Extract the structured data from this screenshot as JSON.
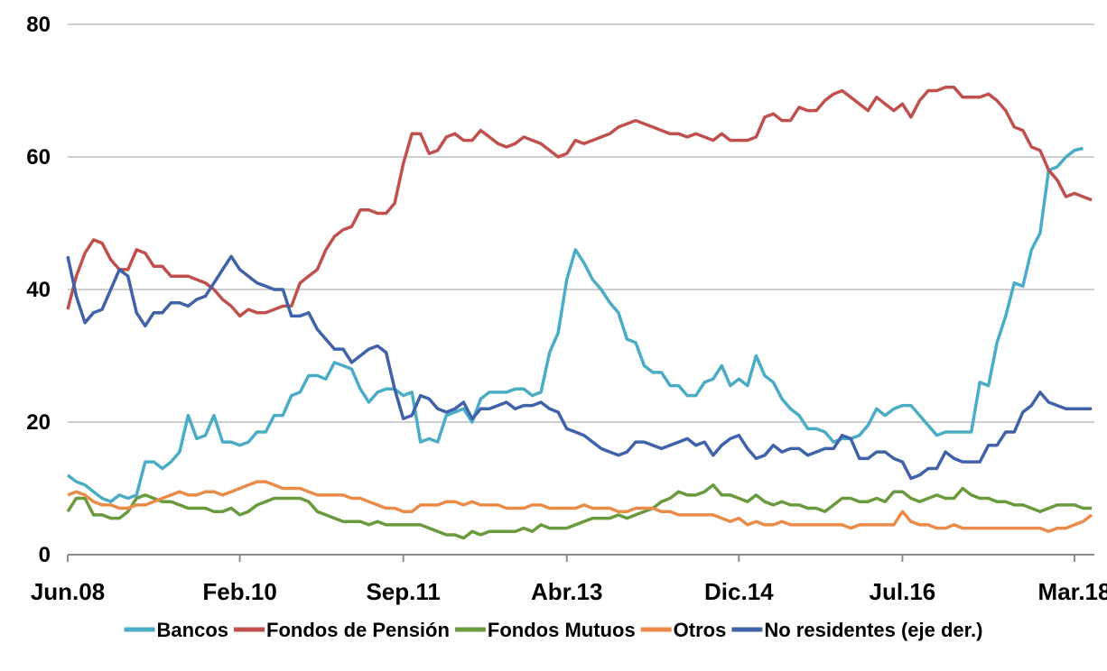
{
  "chart_data": {
    "type": "line",
    "categories": [
      "Jun.08",
      null,
      null,
      null,
      null,
      null,
      null,
      null,
      null,
      null,
      null,
      null,
      null,
      null,
      null,
      null,
      null,
      null,
      null,
      null,
      "Feb.10",
      null,
      null,
      null,
      null,
      null,
      null,
      null,
      null,
      null,
      null,
      null,
      null,
      null,
      null,
      null,
      null,
      null,
      null,
      "Sep.11",
      null,
      null,
      null,
      null,
      null,
      null,
      null,
      null,
      null,
      null,
      null,
      null,
      null,
      null,
      null,
      null,
      null,
      null,
      "Abr.13",
      null,
      null,
      null,
      null,
      null,
      null,
      null,
      null,
      null,
      null,
      null,
      null,
      null,
      null,
      null,
      null,
      null,
      null,
      null,
      "Dic.14",
      null,
      null,
      null,
      null,
      null,
      null,
      null,
      null,
      null,
      null,
      null,
      null,
      null,
      null,
      null,
      null,
      null,
      null,
      "Jul.16",
      null,
      null,
      null,
      null,
      null,
      null,
      null,
      null,
      null,
      null,
      null,
      null,
      null,
      null,
      null,
      null,
      null,
      null,
      null,
      "Mar.18",
      null,
      null
    ],
    "series": [
      {
        "name": "Bancos",
        "color": "#4bacc6",
        "values": [
          12,
          11,
          10.5,
          9.5,
          8.5,
          8,
          9,
          8.5,
          9,
          14,
          14,
          13,
          14,
          15.5,
          21,
          17.5,
          18,
          21,
          17,
          17,
          16.5,
          17,
          18.5,
          18.5,
          21,
          21,
          24,
          24.5,
          27,
          27,
          26.5,
          29,
          28.5,
          28,
          25,
          23,
          24.5,
          25,
          25,
          24,
          24.5,
          17,
          17.5,
          17,
          21,
          21.5,
          22,
          20,
          23.5,
          24.5,
          24.5,
          24.5,
          25,
          25,
          24,
          24.5,
          30.5,
          33.5,
          41.5,
          46,
          44,
          41.5,
          40,
          38,
          36.5,
          32.5,
          32,
          28.5,
          27.5,
          27.5,
          25.5,
          25.5,
          24,
          24,
          26,
          26.5,
          28.5,
          25.5,
          26.5,
          25.5,
          30,
          27,
          26,
          23.5,
          22,
          21,
          19,
          19,
          18.5,
          17,
          17.5,
          17.5,
          18,
          19.5,
          22,
          21,
          22,
          22.5,
          22.5,
          21,
          19.5,
          18,
          18.5,
          18.5,
          18.5,
          18.5,
          26,
          25.5,
          32,
          36,
          41,
          40.5,
          46,
          48.5,
          58,
          58.5,
          60,
          61,
          61.3,
          null
        ]
      },
      {
        "name": "Fondos de Pensión",
        "color": "#c0504d",
        "values": [
          37,
          42,
          45.5,
          47.5,
          47,
          44.5,
          43,
          43,
          46,
          45.5,
          43.5,
          43.5,
          42,
          42,
          42,
          41.5,
          41,
          40,
          38.5,
          37.5,
          36,
          37,
          36.5,
          36.5,
          37,
          37.5,
          37.5,
          41,
          42,
          43,
          46,
          48,
          49,
          49.5,
          52,
          52,
          51.5,
          51.5,
          53,
          59,
          63.5,
          63.5,
          60.5,
          61,
          63,
          63.5,
          62.5,
          62.5,
          64,
          63,
          62,
          61.5,
          62,
          63,
          62.5,
          62,
          61,
          60,
          60.5,
          62.5,
          62,
          62.5,
          63,
          63.5,
          64.5,
          65,
          65.5,
          65,
          64.5,
          64,
          63.5,
          63.5,
          63,
          63.5,
          63,
          62.5,
          63.5,
          62.5,
          62.5,
          62.5,
          63,
          66,
          66.5,
          65.5,
          65.5,
          67.5,
          67,
          67,
          68.5,
          69.5,
          70,
          69,
          68,
          67,
          69,
          68,
          67,
          68,
          66,
          68.5,
          70,
          70,
          70.5,
          70.5,
          69,
          69,
          69,
          69.5,
          68.5,
          67,
          64.5,
          64,
          61.5,
          61,
          58,
          56.5,
          54,
          54.5,
          54,
          53.5
        ]
      },
      {
        "name": "Fondos Mutuos",
        "color": "#6a9a3e",
        "values": [
          6.5,
          8.5,
          8.5,
          6,
          6,
          5.5,
          5.5,
          6.5,
          8.5,
          9,
          8.5,
          8,
          8,
          7.5,
          7,
          7,
          7,
          6.5,
          6.5,
          7,
          6,
          6.5,
          7.5,
          8,
          8.5,
          8.5,
          8.5,
          8.5,
          8,
          6.5,
          6,
          5.5,
          5,
          5,
          5,
          4.5,
          5,
          4.5,
          4.5,
          4.5,
          4.5,
          4.5,
          4,
          3.5,
          3,
          3,
          2.5,
          3.5,
          3,
          3.5,
          3.5,
          3.5,
          3.5,
          4,
          3.5,
          4.5,
          4,
          4,
          4,
          4.5,
          5,
          5.5,
          5.5,
          5.5,
          6,
          5.5,
          6,
          6.5,
          7,
          8,
          8.5,
          9.5,
          9,
          9,
          9.5,
          10.5,
          9,
          9,
          8.5,
          8,
          9,
          8,
          7.5,
          8,
          7.5,
          7.5,
          7,
          7,
          6.5,
          7.5,
          8.5,
          8.5,
          8,
          8,
          8.5,
          8,
          9.5,
          9.5,
          8.5,
          8,
          8.5,
          9,
          8.5,
          8.5,
          10,
          9,
          8.5,
          8.5,
          8,
          8,
          7.5,
          7.5,
          7,
          6.5,
          7,
          7.5,
          7.5,
          7.5,
          7,
          7
        ]
      },
      {
        "name": "Otros",
        "color": "#e98c4a",
        "values": [
          9,
          9.5,
          9,
          8,
          7.5,
          7.5,
          7,
          7,
          7.5,
          7.5,
          8,
          8.5,
          9,
          9.5,
          9,
          9,
          9.5,
          9.5,
          9,
          9.5,
          10,
          10.5,
          11,
          11,
          10.5,
          10,
          10,
          10,
          9.5,
          9,
          9,
          9,
          9,
          8.5,
          8.5,
          8,
          7.5,
          7,
          7,
          6.5,
          6.5,
          7.5,
          7.5,
          7.5,
          8,
          8,
          7.5,
          8,
          7.5,
          7.5,
          7.5,
          7,
          7,
          7,
          7.5,
          7.5,
          7,
          7,
          7,
          7,
          7.5,
          7,
          7,
          7,
          6.5,
          6.5,
          7,
          7,
          7,
          6.5,
          6.5,
          6,
          6,
          6,
          6,
          6,
          5.5,
          5,
          5.5,
          4.5,
          5,
          4.5,
          4.5,
          5,
          4.5,
          4.5,
          4.5,
          4.5,
          4.5,
          4.5,
          4.5,
          4,
          4.5,
          4.5,
          4.5,
          4.5,
          4.5,
          6.5,
          5,
          4.5,
          4.5,
          4,
          4,
          4.5,
          4,
          4,
          4,
          4,
          4,
          4,
          4,
          4,
          4,
          4,
          3.5,
          4,
          4,
          4.5,
          5,
          6
        ]
      },
      {
        "name": "No residentes (eje der.)",
        "color": "#3f62a8",
        "values": [
          45,
          39,
          35,
          36.5,
          37,
          40,
          43,
          42,
          36.5,
          34.5,
          36.5,
          36.5,
          38,
          38,
          37.5,
          38.5,
          39,
          41,
          43,
          45,
          43,
          42,
          41,
          40.5,
          40,
          40,
          36,
          36,
          36.5,
          34,
          32.5,
          31,
          31,
          29,
          30,
          31,
          31.5,
          30.5,
          25,
          20.5,
          21,
          24,
          23.5,
          22,
          21.5,
          22,
          23,
          20.5,
          22,
          22,
          22.5,
          23,
          22,
          22.5,
          22.5,
          23,
          22,
          21.5,
          19,
          18.5,
          18,
          17,
          16,
          15.5,
          15,
          15.5,
          17,
          17,
          16.5,
          16,
          16.5,
          17,
          17.5,
          16.5,
          17,
          15,
          16.5,
          17.5,
          18,
          16,
          14.5,
          15,
          16.5,
          15.5,
          16,
          16,
          15,
          15.5,
          16,
          16,
          18,
          17.5,
          14.5,
          14.5,
          15.5,
          15.5,
          14.5,
          14,
          11.5,
          12,
          13,
          13,
          15.5,
          14.5,
          14,
          14,
          14,
          16.5,
          16.5,
          18.5,
          18.5,
          21.5,
          22.5,
          24.5,
          23,
          22.5,
          22,
          22,
          22,
          22
        ]
      }
    ],
    "ylim": [
      0,
      80
    ],
    "yticks": [
      0,
      20,
      40,
      60,
      80
    ],
    "grid": true,
    "legend": "bottom"
  }
}
